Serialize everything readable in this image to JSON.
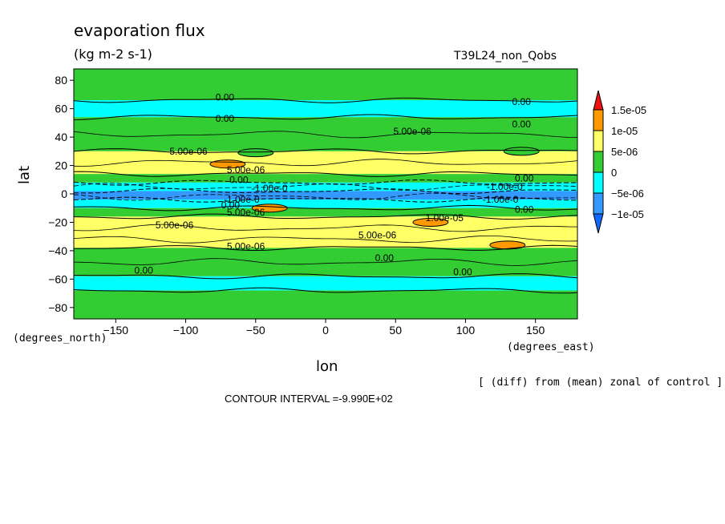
{
  "header": {
    "title": "evaporation flux",
    "units": "(kg m-2 s-1)",
    "experiment": "T39L24_non_Qobs"
  },
  "footer": {
    "x_units": "(degrees_east)",
    "y_units": "(degrees_north)",
    "note": "[ (diff) from (mean) zonal of control ]",
    "contour_interval": "CONTOUR INTERVAL =-9.990E+02"
  },
  "chart_data": {
    "type": "heatmap",
    "title": "evaporation flux",
    "subtitle": "(kg m-2 s-1)",
    "xlabel": "lon",
    "ylabel": "lat",
    "xlim": [
      -180,
      180
    ],
    "ylim": [
      -88,
      88
    ],
    "x_ticks": [
      -150,
      -100,
      -50,
      0,
      50,
      100,
      150
    ],
    "y_ticks": [
      -80,
      -60,
      -40,
      -20,
      0,
      20,
      40,
      60,
      80
    ],
    "legend": {
      "placement": "right",
      "labels": [
        "1.5e-05",
        "1e-05",
        "5e-06",
        "0",
        "-5e-06",
        "-1e-05"
      ],
      "colors": [
        "#ff9900",
        "#ffff66",
        "#33cc33",
        "#00ffff",
        "#3399ff"
      ],
      "top_arrow_color": "#ee1111",
      "bottom_arrow_color": "#1166ff"
    },
    "bands": [
      {
        "lat_from": 88,
        "lat_to": 66,
        "category": "0 to 5e-06"
      },
      {
        "lat_from": 66,
        "lat_to": 54,
        "category": "-5e-06 to 0"
      },
      {
        "lat_from": 54,
        "lat_to": 30,
        "category": "0 to 5e-06"
      },
      {
        "lat_from": 30,
        "lat_to": 14,
        "category": "5e-06 to 1e-05"
      },
      {
        "lat_from": 14,
        "lat_to": 8,
        "category": "0 to 5e-06"
      },
      {
        "lat_from": 8,
        "lat_to": 2,
        "category": "-5e-06 to 0"
      },
      {
        "lat_from": 2,
        "lat_to": -4,
        "category": "-1e-05 to -5e-06"
      },
      {
        "lat_from": -4,
        "lat_to": -10,
        "category": "-5e-06 to 0"
      },
      {
        "lat_from": -10,
        "lat_to": -16,
        "category": "0 to 5e-06"
      },
      {
        "lat_from": -16,
        "lat_to": -38,
        "category": "5e-06 to 1e-05"
      },
      {
        "lat_from": -38,
        "lat_to": -58,
        "category": "0 to 5e-06"
      },
      {
        "lat_from": -58,
        "lat_to": -68,
        "category": "-5e-06 to 0"
      },
      {
        "lat_from": -68,
        "lat_to": -88,
        "category": "0 to 5e-06"
      }
    ],
    "patches": [
      {
        "lon": -70,
        "lat": 21,
        "category": "1e-05 to 1.5e-05"
      },
      {
        "lon": -40,
        "lat": -10,
        "category": "1e-05 to 1.5e-05"
      },
      {
        "lon": 75,
        "lat": -20,
        "category": "1e-05 to 1.5e-05"
      },
      {
        "lon": 130,
        "lat": -36,
        "category": "1e-05 to 1.5e-05"
      },
      {
        "lon": 140,
        "lat": 30,
        "category": "0 to 5e-06"
      },
      {
        "lon": -50,
        "lat": 29,
        "category": "0 to 5e-06"
      }
    ],
    "contour_labels": [
      {
        "text": "0.00",
        "lon": -72,
        "lat": 68
      },
      {
        "text": "0.00",
        "lon": 140,
        "lat": 65
      },
      {
        "text": "0.00",
        "lon": -72,
        "lat": 53
      },
      {
        "text": "0.00",
        "lon": 140,
        "lat": 49
      },
      {
        "text": "5.00e-06",
        "lon": 62,
        "lat": 44
      },
      {
        "text": "5.00e-06",
        "lon": -98,
        "lat": 30
      },
      {
        "text": "5.00e-06",
        "lon": -57,
        "lat": 17
      },
      {
        "text": "0.00",
        "lon": -62,
        "lat": 10
      },
      {
        "text": "-1.00e-0",
        "lon": -40,
        "lat": 4
      },
      {
        "text": "-1.00e-0",
        "lon": -60,
        "lat": -4
      },
      {
        "text": "0.00",
        "lon": -68,
        "lat": -8
      },
      {
        "text": "5.00e-06",
        "lon": -57,
        "lat": -13
      },
      {
        "text": "0.00",
        "lon": 142,
        "lat": 11
      },
      {
        "text": "-1.00e-0",
        "lon": 128,
        "lat": 5
      },
      {
        "text": "-1.00e-0",
        "lon": 125,
        "lat": -4
      },
      {
        "text": "0.00",
        "lon": 142,
        "lat": -11
      },
      {
        "text": "1.00e-05",
        "lon": 85,
        "lat": -17
      },
      {
        "text": "5.00e-06",
        "lon": -108,
        "lat": -22
      },
      {
        "text": "5.00e-06",
        "lon": 37,
        "lat": -29
      },
      {
        "text": "5.00e-06",
        "lon": -57,
        "lat": -37
      },
      {
        "text": "0.00",
        "lon": 42,
        "lat": -45
      },
      {
        "text": "0.00",
        "lon": -130,
        "lat": -54
      },
      {
        "text": "0.00",
        "lon": 98,
        "lat": -55
      }
    ]
  }
}
